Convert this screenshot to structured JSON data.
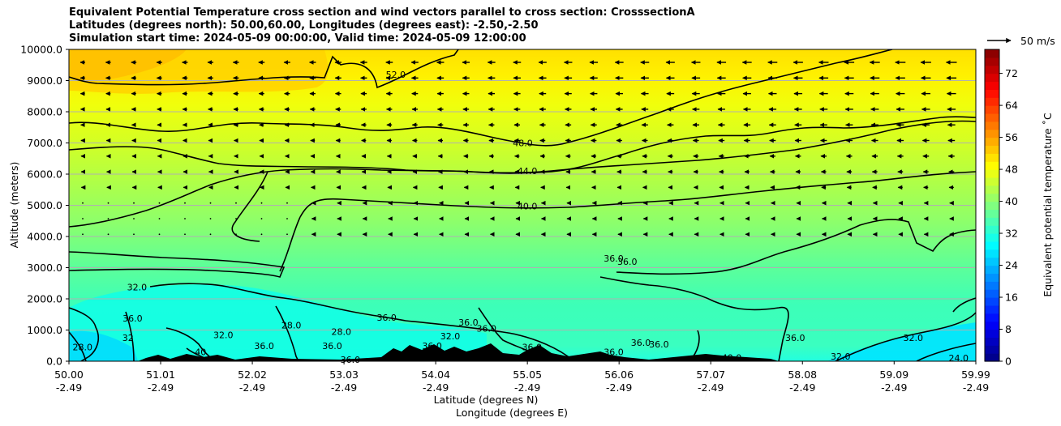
{
  "title": {
    "line1": "Equivalent Potential Temperature cross section and wind vectors parallel to cross section: CrosssectionA",
    "line2": "Latitudes (degrees north): 50.00,60.00, Longitudes (degrees east): -2.50,-2.50",
    "line3": "Simulation start time: 2024-05-09 00:00:00, Valid time: 2024-05-09 12:00:00"
  },
  "chart_data": {
    "type": "heatmap",
    "description_of_variable": "Equivalent potential temperature",
    "xlabel_line1": "Latitude (degrees N)",
    "xlabel_line2": "Longitude (degrees E)",
    "ylabel": "Altitude (meters)",
    "x_ticks_lat": [
      "50.00",
      "51.01",
      "52.02",
      "53.03",
      "54.04",
      "55.05",
      "56.06",
      "57.07",
      "58.08",
      "59.09",
      "59.99"
    ],
    "x_ticks_lon": [
      "-2.49",
      "-2.49",
      "-2.49",
      "-2.49",
      "-2.49",
      "-2.49",
      "-2.49",
      "-2.49",
      "-2.49",
      "-2.49",
      "-2.49"
    ],
    "x_lat_values": [
      50.0,
      51.01,
      52.02,
      53.03,
      54.04,
      55.05,
      56.06,
      57.07,
      58.08,
      59.09,
      59.99
    ],
    "xlim": [
      50.0,
      59.99
    ],
    "y_ticks": [
      "0.0",
      "1000.0",
      "2000.0",
      "3000.0",
      "4000.0",
      "5000.0",
      "6000.0",
      "7000.0",
      "8000.0",
      "9000.0",
      "10000.0"
    ],
    "y_values": [
      0,
      1000,
      2000,
      3000,
      4000,
      5000,
      6000,
      7000,
      8000,
      9000,
      10000
    ],
    "ylim": [
      0,
      10000
    ],
    "grid": "horizontal",
    "colorbar": {
      "label": "Equivalent potential temperature ˚C",
      "ticks": [
        "0",
        "8",
        "16",
        "24",
        "32",
        "40",
        "48",
        "56",
        "64",
        "72"
      ],
      "tick_values": [
        0,
        8,
        16,
        24,
        32,
        40,
        48,
        56,
        64,
        72
      ],
      "range": [
        0,
        78
      ],
      "colormap": "jet"
    },
    "quiver_key": "50 m/s",
    "contour_labels": [
      {
        "text": "52.0",
        "lat": 53.6,
        "alt": 9200
      },
      {
        "text": "48.0",
        "lat": 55.0,
        "alt": 7000
      },
      {
        "text": "44.0",
        "lat": 55.05,
        "alt": 6100
      },
      {
        "text": "40.0",
        "lat": 55.05,
        "alt": 4980
      },
      {
        "text": "36.0",
        "lat": 56.0,
        "alt": 3300
      },
      {
        "text": "36.0",
        "lat": 56.15,
        "alt": 3200
      },
      {
        "text": "32.0",
        "lat": 50.75,
        "alt": 2380
      },
      {
        "text": "36.0",
        "lat": 53.5,
        "alt": 1400
      },
      {
        "text": "36.0",
        "lat": 54.4,
        "alt": 1250
      },
      {
        "text": "36.0",
        "lat": 50.7,
        "alt": 1380
      },
      {
        "text": "28.0",
        "lat": 52.45,
        "alt": 1150
      },
      {
        "text": "28.0",
        "lat": 53.0,
        "alt": 950
      },
      {
        "text": "32.0",
        "lat": 51.7,
        "alt": 850
      },
      {
        "text": "32.0",
        "lat": 54.2,
        "alt": 800
      },
      {
        "text": "36.0",
        "lat": 54.6,
        "alt": 1050
      },
      {
        "text": "28.0",
        "lat": 50.15,
        "alt": 450
      },
      {
        "text": "32",
        "lat": 50.65,
        "alt": 750
      },
      {
        "text": "36.0",
        "lat": 52.9,
        "alt": 500
      },
      {
        "text": "36.0",
        "lat": 52.15,
        "alt": 500
      },
      {
        "text": "36.0",
        "lat": 55.1,
        "alt": 450
      },
      {
        "text": "36.0",
        "lat": 56.3,
        "alt": 600
      },
      {
        "text": "40",
        "lat": 51.45,
        "alt": 300
      },
      {
        "text": "36.0",
        "lat": 53.1,
        "alt": 50
      },
      {
        "text": "36.0",
        "lat": 54.0,
        "alt": 500
      },
      {
        "text": "36.0",
        "lat": 56.0,
        "alt": 300
      },
      {
        "text": "36.0",
        "lat": 56.5,
        "alt": 550
      },
      {
        "text": "40.0",
        "lat": 57.3,
        "alt": 120
      },
      {
        "text": "36.0",
        "lat": 58.0,
        "alt": 750
      },
      {
        "text": "32.0",
        "lat": 58.5,
        "alt": 150
      },
      {
        "text": "32.0",
        "lat": 59.3,
        "alt": 750
      },
      {
        "text": "24.0",
        "lat": 59.8,
        "alt": 100
      }
    ]
  }
}
